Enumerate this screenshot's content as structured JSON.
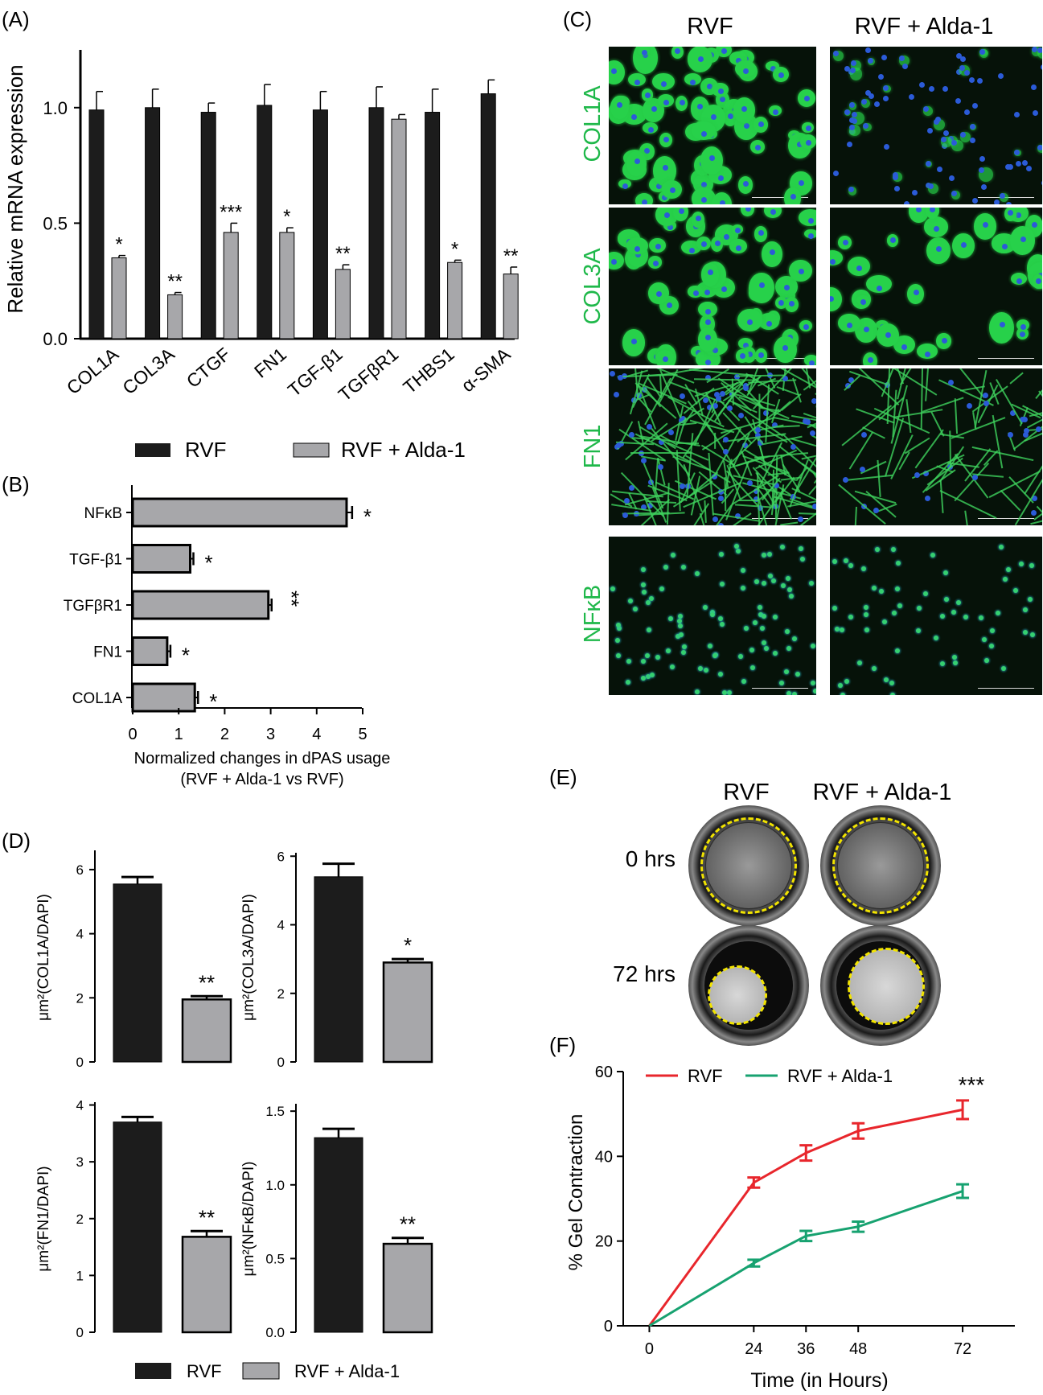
{
  "colors": {
    "rvf": "#1c1c1c",
    "alda": "#a7a7aa",
    "line_rvf": "#e8262c",
    "line_alda": "#17a270",
    "fluor": "#27d14a",
    "nucleus": "#2b5bd8",
    "ring": "#f2e400"
  },
  "chart_data": [
    {
      "panel": "(A)",
      "type": "bar",
      "ylabel": "Relative mRNA expression",
      "ylim": [
        0,
        1.25
      ],
      "yticks": [
        "0.0",
        "0.5",
        "1.0"
      ],
      "categories": [
        "COL1A",
        "COL3A",
        "CTGF",
        "FN1",
        "TGF-β1",
        "TGFβR1",
        "THBS1",
        "α-SMA"
      ],
      "series": [
        {
          "name": "RVF",
          "values": [
            0.99,
            1.0,
            0.98,
            1.01,
            0.99,
            1.0,
            0.98,
            1.06
          ],
          "errors": [
            0.08,
            0.08,
            0.04,
            0.09,
            0.08,
            0.09,
            0.1,
            0.06
          ]
        },
        {
          "name": "RVF + Alda-1",
          "values": [
            0.35,
            0.19,
            0.46,
            0.46,
            0.3,
            0.95,
            0.33,
            0.28
          ],
          "errors": [
            0.01,
            0.01,
            0.04,
            0.02,
            0.02,
            0.02,
            0.01,
            0.03
          ]
        }
      ],
      "significance": [
        "*",
        "**",
        "***",
        "*",
        "**",
        "",
        "*",
        "**"
      ],
      "legend": [
        "RVF",
        "RVF + Alda-1"
      ]
    },
    {
      "panel": "(B)",
      "type": "bar",
      "orientation": "horizontal",
      "xlabel": "Normalized changes in dPAS usage",
      "xlabel2": "(RVF + Alda-1 vs RVF)",
      "xlim": [
        0,
        5
      ],
      "xticks": [
        "0",
        "1",
        "2",
        "3",
        "4",
        "5"
      ],
      "categories": [
        "NFκB",
        "TGF-β1",
        "TGFβR1",
        "FN1",
        "COL1A"
      ],
      "values": [
        4.65,
        1.25,
        2.95,
        0.75,
        1.35
      ],
      "errors": [
        0.12,
        0.07,
        0.07,
        0.07,
        0.07
      ],
      "significance": [
        "*",
        "*",
        "**",
        "*",
        "*"
      ]
    },
    {
      "panel": "(D)",
      "type": "bar",
      "ylabel": "μm²(COL1A/DAPI)",
      "ylim": [
        0,
        6.6
      ],
      "yticks": [
        "0",
        "2",
        "4",
        "6"
      ],
      "categories": [
        "RVF",
        "RVF + Alda-1"
      ],
      "values": [
        5.55,
        1.95
      ],
      "errors": [
        0.22,
        0.1
      ],
      "significance": "**"
    },
    {
      "type": "bar",
      "ylabel": "μm²(COL3A/DAPI)",
      "ylim": [
        0,
        6.1
      ],
      "yticks": [
        "0",
        "2",
        "4",
        "6"
      ],
      "categories": [
        "RVF",
        "RVF + Alda-1"
      ],
      "values": [
        5.4,
        2.9
      ],
      "errors": [
        0.38,
        0.1
      ],
      "significance": "*"
    },
    {
      "type": "bar",
      "ylabel": "μm²(FN1/DAPI)",
      "ylim": [
        0,
        4.05
      ],
      "yticks": [
        "0",
        "1",
        "2",
        "3",
        "4"
      ],
      "categories": [
        "RVF",
        "RVF + Alda-1"
      ],
      "values": [
        3.7,
        1.68
      ],
      "errors": [
        0.09,
        0.1
      ],
      "significance": "**"
    },
    {
      "type": "bar",
      "ylabel": "μm²(NFκB/DAPI)",
      "ylim": [
        0,
        1.55
      ],
      "yticks": [
        "0.0",
        "0.5",
        "1.0",
        "1.5"
      ],
      "categories": [
        "RVF",
        "RVF + Alda-1"
      ],
      "values": [
        1.32,
        0.6
      ],
      "errors": [
        0.06,
        0.04
      ],
      "significance": "**"
    },
    {
      "panel": "(F)",
      "type": "line",
      "xlabel": "Time (in Hours)",
      "ylabel": "% Gel Contraction",
      "x": [
        0,
        24,
        36,
        48,
        72
      ],
      "xlim": [
        -6,
        84
      ],
      "ylim": [
        0,
        60
      ],
      "xticks": [
        "0",
        "24",
        "36",
        "48",
        "72"
      ],
      "yticks": [
        "0",
        "20",
        "40",
        "60"
      ],
      "series": [
        {
          "name": "RVF",
          "values": [
            0,
            33.8,
            40.8,
            46,
            51
          ],
          "errors": [
            0,
            1.2,
            1.8,
            1.8,
            2.2
          ]
        },
        {
          "name": "RVF + Alda-1",
          "values": [
            0,
            14.8,
            21.2,
            23.4,
            31.8
          ],
          "errors": [
            0,
            0.8,
            1.2,
            1.2,
            1.6
          ]
        }
      ],
      "significance": "***"
    }
  ],
  "panelC": {
    "label": "(C)",
    "columns": [
      "RVF",
      "RVF + Alda-1"
    ],
    "rows": [
      "COL1A",
      "COL3A",
      "FN1",
      "NFκB"
    ]
  },
  "panelD": {
    "label": "(D)",
    "legend": [
      "RVF",
      "RVF + Alda-1"
    ]
  },
  "panelE": {
    "label": "(E)",
    "columns": [
      "RVF",
      "RVF + Alda-1"
    ],
    "rows": [
      "0 hrs",
      "72 hrs"
    ]
  }
}
